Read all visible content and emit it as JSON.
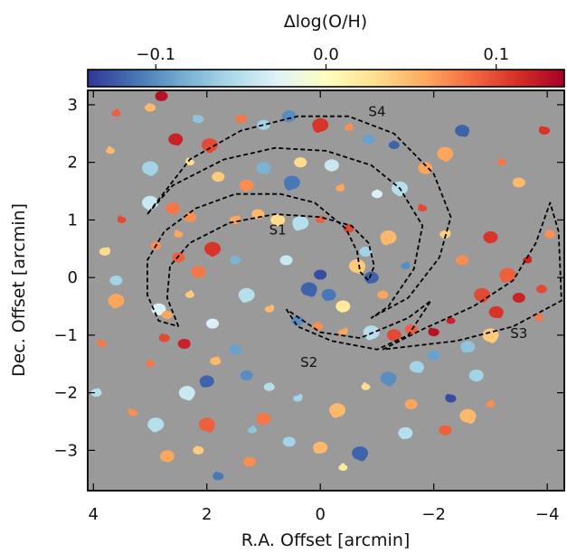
{
  "chart_data": {
    "type": "heatmap",
    "title": "",
    "colorbar": {
      "label": "Δlog(O/H)",
      "ticks": [
        -0.1,
        0.0,
        0.1
      ],
      "tick_labels": [
        "−0.1",
        "0.0",
        "0.1"
      ],
      "range": [
        -0.14,
        0.14
      ],
      "colormap": [
        "#313695",
        "#4575b4",
        "#74add1",
        "#abd9e9",
        "#e0f3f8",
        "#ffffbf",
        "#fee090",
        "#fdae61",
        "#f46d43",
        "#d73027",
        "#a50026"
      ]
    },
    "background_color": "#9a9a9a",
    "xlabel": "R.A. Offset [arcmin]",
    "ylabel": "Dec. Offset [arcmin]",
    "xlim": [
      4.1,
      -4.3
    ],
    "ylim": [
      -3.7,
      3.25
    ],
    "x_ticks": [
      4,
      2,
      0,
      -2,
      -4
    ],
    "x_tick_labels": [
      "4",
      "2",
      "0",
      "−2",
      "−4"
    ],
    "y_ticks": [
      3,
      2,
      1,
      0,
      -1,
      -2,
      -3
    ],
    "y_tick_labels": [
      "3",
      "2",
      "1",
      "0",
      "−1",
      "−2",
      "−3"
    ],
    "regions": [
      {
        "name": "S1",
        "label_pos": [
          0.75,
          0.75
        ],
        "outline": [
          [
            2.5,
            -0.85
          ],
          [
            2.7,
            -0.35
          ],
          [
            2.65,
            0.2
          ],
          [
            2.3,
            0.6
          ],
          [
            1.6,
            0.95
          ],
          [
            0.8,
            1.1
          ],
          [
            0.0,
            1.05
          ],
          [
            -0.55,
            0.9
          ],
          [
            -0.85,
            0.6
          ],
          [
            -0.95,
            0.2
          ],
          [
            -0.85,
            -0.05
          ],
          [
            -0.7,
            0.1
          ],
          [
            -0.65,
            0.45
          ],
          [
            -0.45,
            0.85
          ],
          [
            0.1,
            1.3
          ],
          [
            0.7,
            1.45
          ],
          [
            1.5,
            1.45
          ],
          [
            2.2,
            1.2
          ],
          [
            2.75,
            0.8
          ],
          [
            3.05,
            0.3
          ],
          [
            3.05,
            -0.3
          ],
          [
            2.85,
            -0.75
          ],
          [
            2.5,
            -0.85
          ]
        ]
      },
      {
        "name": "S2",
        "label_pos": [
          0.2,
          -1.55
        ],
        "outline": [
          [
            0.6,
            -0.55
          ],
          [
            0.4,
            -0.85
          ],
          [
            -0.2,
            -1.1
          ],
          [
            -1.0,
            -1.25
          ],
          [
            -1.55,
            -1.0
          ],
          [
            -1.95,
            -0.4
          ],
          [
            -1.55,
            -0.7
          ],
          [
            -0.7,
            -1.05
          ],
          [
            0.0,
            -0.95
          ],
          [
            0.3,
            -0.75
          ],
          [
            0.6,
            -0.55
          ]
        ]
      },
      {
        "name": "S3",
        "label_pos": [
          -3.5,
          -1.05
        ],
        "outline": [
          [
            -1.1,
            -1.25
          ],
          [
            -1.8,
            -0.9
          ],
          [
            -2.7,
            -0.5
          ],
          [
            -3.4,
            -0.05
          ],
          [
            -3.8,
            0.6
          ],
          [
            -4.05,
            1.3
          ],
          [
            -4.2,
            0.8
          ],
          [
            -4.25,
            -0.4
          ],
          [
            -3.4,
            -0.85
          ],
          [
            -2.4,
            -1.1
          ],
          [
            -1.1,
            -1.25
          ]
        ]
      },
      {
        "name": "S4",
        "label_pos": [
          -1.0,
          2.8
        ],
        "outline": [
          [
            3.05,
            1.1
          ],
          [
            2.6,
            1.6
          ],
          [
            1.7,
            2.05
          ],
          [
            0.8,
            2.25
          ],
          [
            -0.1,
            2.2
          ],
          [
            -0.9,
            1.95
          ],
          [
            -1.4,
            1.55
          ],
          [
            -1.8,
            0.9
          ],
          [
            -1.65,
            0.15
          ],
          [
            -1.2,
            -0.5
          ],
          [
            -0.9,
            -0.7
          ],
          [
            -1.55,
            -0.35
          ],
          [
            -2.1,
            0.35
          ],
          [
            -2.3,
            1.05
          ],
          [
            -2.0,
            1.8
          ],
          [
            -1.3,
            2.5
          ],
          [
            -0.5,
            2.8
          ],
          [
            0.4,
            2.8
          ],
          [
            1.4,
            2.55
          ],
          [
            2.3,
            2.05
          ],
          [
            3.05,
            1.1
          ]
        ]
      }
    ],
    "clumps": [
      {
        "x": 0.0,
        "y": 0.05,
        "v": -0.13
      },
      {
        "x": -0.15,
        "y": -0.3,
        "v": -0.11
      },
      {
        "x": 0.2,
        "y": -0.2,
        "v": -0.12
      },
      {
        "x": 3.6,
        "y": 2.85,
        "v": 0.09
      },
      {
        "x": 3.0,
        "y": 2.95,
        "v": 0.05
      },
      {
        "x": 2.8,
        "y": 3.15,
        "v": 0.13
      },
      {
        "x": 2.55,
        "y": 2.4,
        "v": 0.12
      },
      {
        "x": 1.95,
        "y": 2.3,
        "v": 0.1
      },
      {
        "x": 2.3,
        "y": 2.0,
        "v": 0.03
      },
      {
        "x": 1.4,
        "y": 2.75,
        "v": 0.08
      },
      {
        "x": 1.0,
        "y": 2.65,
        "v": -0.06
      },
      {
        "x": 0.55,
        "y": 2.8,
        "v": -0.1
      },
      {
        "x": 0.0,
        "y": 2.65,
        "v": 0.11
      },
      {
        "x": -0.5,
        "y": 2.6,
        "v": 0.07
      },
      {
        "x": -1.3,
        "y": 2.3,
        "v": -0.12
      },
      {
        "x": -0.85,
        "y": 2.4,
        "v": -0.09
      },
      {
        "x": -2.5,
        "y": 2.55,
        "v": -0.12
      },
      {
        "x": -2.2,
        "y": 2.15,
        "v": 0.06
      },
      {
        "x": -3.2,
        "y": 2.0,
        "v": 0.08
      },
      {
        "x": -3.95,
        "y": 2.55,
        "v": 0.11
      },
      {
        "x": -3.5,
        "y": 1.65,
        "v": 0.05
      },
      {
        "x": -1.85,
        "y": 1.9,
        "v": 0.06
      },
      {
        "x": -1.4,
        "y": 1.55,
        "v": -0.05
      },
      {
        "x": -1.8,
        "y": 1.2,
        "v": 0.1
      },
      {
        "x": -2.2,
        "y": 0.75,
        "v": 0.04
      },
      {
        "x": -2.5,
        "y": 0.3,
        "v": 0.07
      },
      {
        "x": -3.0,
        "y": 0.7,
        "v": 0.11
      },
      {
        "x": -3.3,
        "y": 0.05,
        "v": 0.09
      },
      {
        "x": -3.65,
        "y": 0.3,
        "v": 0.12
      },
      {
        "x": -3.9,
        "y": -0.2,
        "v": 0.1
      },
      {
        "x": -3.5,
        "y": -0.35,
        "v": 0.12
      },
      {
        "x": -3.1,
        "y": -0.6,
        "v": 0.11
      },
      {
        "x": -2.85,
        "y": -0.3,
        "v": 0.1
      },
      {
        "x": -2.3,
        "y": -0.75,
        "v": 0.12
      },
      {
        "x": -2.0,
        "y": -0.95,
        "v": 0.13
      },
      {
        "x": -1.6,
        "y": -0.9,
        "v": 0.09
      },
      {
        "x": -1.3,
        "y": -1.0,
        "v": 0.1
      },
      {
        "x": -0.9,
        "y": -0.95,
        "v": -0.05
      },
      {
        "x": -0.4,
        "y": -0.95,
        "v": 0.06
      },
      {
        "x": 0.05,
        "y": -0.85,
        "v": 0.07
      },
      {
        "x": 0.4,
        "y": -0.75,
        "v": -0.1
      },
      {
        "x": -2.6,
        "y": -1.2,
        "v": -0.07
      },
      {
        "x": -3.0,
        "y": -1.0,
        "v": 0.04
      },
      {
        "x": -3.85,
        "y": -0.7,
        "v": 0.08
      },
      {
        "x": -4.05,
        "y": 0.75,
        "v": 0.07
      },
      {
        "x": -2.0,
        "y": -1.35,
        "v": -0.09
      },
      {
        "x": -1.7,
        "y": -1.55,
        "v": -0.06
      },
      {
        "x": -1.2,
        "y": -1.75,
        "v": -0.1
      },
      {
        "x": -0.8,
        "y": -1.9,
        "v": 0.03
      },
      {
        "x": -2.3,
        "y": -2.1,
        "v": -0.13
      },
      {
        "x": -1.6,
        "y": -2.2,
        "v": 0.06
      },
      {
        "x": -2.75,
        "y": -1.7,
        "v": -0.06
      },
      {
        "x": -0.3,
        "y": -2.3,
        "v": 0.05
      },
      {
        "x": 0.4,
        "y": -2.1,
        "v": -0.06
      },
      {
        "x": 0.9,
        "y": -1.9,
        "v": -0.05
      },
      {
        "x": 1.3,
        "y": -1.7,
        "v": -0.1
      },
      {
        "x": 2.0,
        "y": -1.8,
        "v": -0.12
      },
      {
        "x": 2.35,
        "y": -2.0,
        "v": -0.04
      },
      {
        "x": 3.0,
        "y": -1.5,
        "v": 0.08
      },
      {
        "x": 2.75,
        "y": -1.05,
        "v": 0.1
      },
      {
        "x": 2.4,
        "y": -1.15,
        "v": 0.12
      },
      {
        "x": 2.85,
        "y": -0.55,
        "v": -0.03
      },
      {
        "x": 3.6,
        "y": -0.4,
        "v": 0.06
      },
      {
        "x": 3.85,
        "y": -1.15,
        "v": 0.08
      },
      {
        "x": 1.85,
        "y": -1.45,
        "v": 0.05
      },
      {
        "x": 1.5,
        "y": -1.25,
        "v": -0.09
      },
      {
        "x": 1.0,
        "y": -2.45,
        "v": 0.08
      },
      {
        "x": 2.0,
        "y": -2.55,
        "v": 0.09
      },
      {
        "x": 1.2,
        "y": -2.65,
        "v": -0.07
      },
      {
        "x": 2.15,
        "y": -3.0,
        "v": 0.04
      },
      {
        "x": 0.55,
        "y": -2.85,
        "v": -0.06
      },
      {
        "x": 0.0,
        "y": -2.95,
        "v": 0.05
      },
      {
        "x": -0.7,
        "y": -3.05,
        "v": -0.12
      },
      {
        "x": -0.4,
        "y": -3.3,
        "v": 0.02
      },
      {
        "x": 1.8,
        "y": -3.45,
        "v": -0.11
      },
      {
        "x": 1.25,
        "y": -3.2,
        "v": 0.07
      },
      {
        "x": 2.7,
        "y": -3.1,
        "v": 0.06
      },
      {
        "x": 2.9,
        "y": -2.55,
        "v": -0.05
      },
      {
        "x": 3.3,
        "y": -2.35,
        "v": 0.07
      },
      {
        "x": 3.95,
        "y": -2.0,
        "v": -0.05
      },
      {
        "x": -2.2,
        "y": -2.65,
        "v": 0.09
      },
      {
        "x": -1.5,
        "y": -2.7,
        "v": -0.05
      },
      {
        "x": -2.6,
        "y": -2.4,
        "v": 0.05
      },
      {
        "x": -3.0,
        "y": -2.2,
        "v": 0.07
      },
      {
        "x": 2.9,
        "y": 0.55,
        "v": 0.07
      },
      {
        "x": 2.5,
        "y": 0.35,
        "v": 0.09
      },
      {
        "x": 2.15,
        "y": 0.1,
        "v": 0.08
      },
      {
        "x": 1.9,
        "y": 0.5,
        "v": 0.11
      },
      {
        "x": 2.5,
        "y": 0.75,
        "v": 0.06
      },
      {
        "x": 1.5,
        "y": 1.0,
        "v": 0.06
      },
      {
        "x": 1.1,
        "y": 1.1,
        "v": 0.05
      },
      {
        "x": 0.75,
        "y": 1.0,
        "v": 0.03
      },
      {
        "x": 0.35,
        "y": 0.95,
        "v": -0.05
      },
      {
        "x": 0.0,
        "y": 1.0,
        "v": 0.09
      },
      {
        "x": -0.5,
        "y": 0.85,
        "v": 0.1
      },
      {
        "x": -0.8,
        "y": 0.45,
        "v": -0.06
      },
      {
        "x": -0.9,
        "y": 0.0,
        "v": -0.12
      },
      {
        "x": -0.65,
        "y": 0.2,
        "v": 0.04
      },
      {
        "x": 2.3,
        "y": -0.3,
        "v": 0.04
      },
      {
        "x": 2.7,
        "y": -0.65,
        "v": 0.06
      },
      {
        "x": 2.3,
        "y": 1.05,
        "v": 0.07
      },
      {
        "x": 2.6,
        "y": 1.2,
        "v": 0.08
      },
      {
        "x": 3.0,
        "y": 1.3,
        "v": -0.04
      },
      {
        "x": 3.5,
        "y": 1.0,
        "v": 0.1
      },
      {
        "x": 3.8,
        "y": 0.45,
        "v": 0.03
      },
      {
        "x": 3.6,
        "y": -0.05,
        "v": -0.06
      },
      {
        "x": 1.3,
        "y": 1.6,
        "v": 0.07
      },
      {
        "x": 0.5,
        "y": 1.65,
        "v": -0.11
      },
      {
        "x": -0.35,
        "y": 1.55,
        "v": 0.06
      },
      {
        "x": -1.0,
        "y": 1.45,
        "v": -0.03
      },
      {
        "x": 1.8,
        "y": 1.75,
        "v": 0.04
      },
      {
        "x": 1.0,
        "y": 1.9,
        "v": -0.08
      },
      {
        "x": 3.0,
        "y": 1.9,
        "v": -0.06
      },
      {
        "x": 3.7,
        "y": 2.2,
        "v": 0.05
      },
      {
        "x": 2.15,
        "y": 2.75,
        "v": -0.07
      },
      {
        "x": 0.35,
        "y": 2.0,
        "v": 0.03
      },
      {
        "x": -0.2,
        "y": 1.95,
        "v": -0.04
      },
      {
        "x": 1.3,
        "y": -0.3,
        "v": -0.05
      },
      {
        "x": 0.9,
        "y": -0.55,
        "v": 0.05
      },
      {
        "x": 1.5,
        "y": 0.3,
        "v": -0.08
      },
      {
        "x": 0.6,
        "y": 0.3,
        "v": -0.04
      },
      {
        "x": -0.4,
        "y": -0.5,
        "v": 0.02
      },
      {
        "x": -1.2,
        "y": 0.7,
        "v": 0.05
      },
      {
        "x": -1.5,
        "y": 0.2,
        "v": -0.1
      },
      {
        "x": -1.1,
        "y": -0.3,
        "v": 0.06
      },
      {
        "x": 1.9,
        "y": -0.8,
        "v": -0.03
      }
    ]
  }
}
